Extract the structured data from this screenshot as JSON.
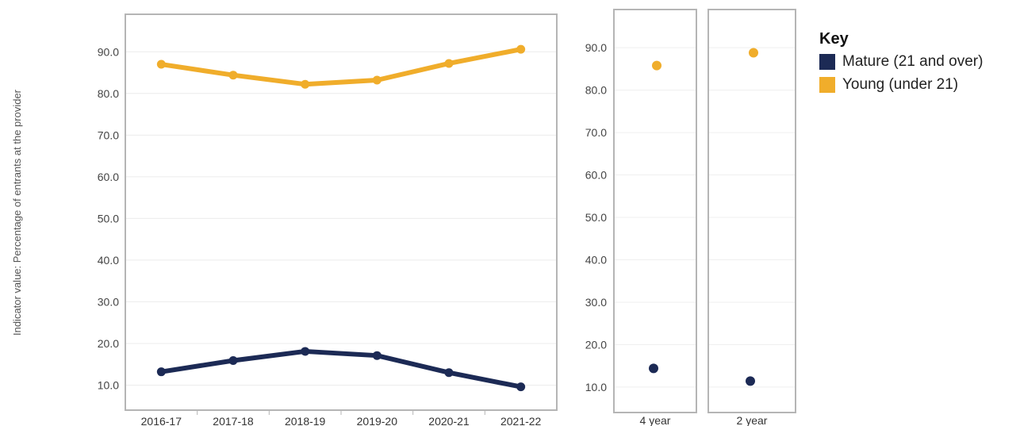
{
  "chart_data": [
    {
      "type": "line",
      "ylabel": "Indicator value: Percentage of  entrants at the provider",
      "categories": [
        "2016-17",
        "2017-18",
        "2018-19",
        "2019-20",
        "2020-21",
        "2021-22"
      ],
      "ylim": [
        4,
        99
      ],
      "yticks": [
        "10.0",
        "20.0",
        "30.0",
        "40.0",
        "50.0",
        "60.0",
        "70.0",
        "80.0",
        "90.0"
      ],
      "grid": true,
      "series": [
        {
          "name": "Young (under 21)",
          "color": "#f0ad2b",
          "values": [
            87.0,
            84.4,
            82.2,
            83.2,
            87.2,
            90.6
          ]
        },
        {
          "name": "Mature (21 and over)",
          "color": "#1c2a55",
          "values": [
            13.2,
            15.9,
            18.1,
            17.1,
            13.0,
            9.6
          ]
        }
      ]
    },
    {
      "type": "scatter",
      "ylim": [
        4,
        99
      ],
      "yticks": [
        "10.0",
        "20.0",
        "30.0",
        "40.0",
        "50.0",
        "60.0",
        "70.0",
        "80.0",
        "90.0"
      ],
      "panels": [
        {
          "label": "4 year",
          "points": [
            {
              "series": "Young (under 21)",
              "y": 85.8
            },
            {
              "series": "Mature (21 and over)",
              "y": 14.4
            }
          ]
        },
        {
          "label": "2 year",
          "points": [
            {
              "series": "Young (under 21)",
              "y": 88.8
            },
            {
              "series": "Mature (21 and over)",
              "y": 11.4
            }
          ]
        }
      ]
    }
  ],
  "legend": {
    "title": "Key",
    "items": [
      {
        "label": "Mature (21 and over)",
        "color": "#1c2a55"
      },
      {
        "label": "Young (under 21)",
        "color": "#f0ad2b"
      }
    ]
  }
}
